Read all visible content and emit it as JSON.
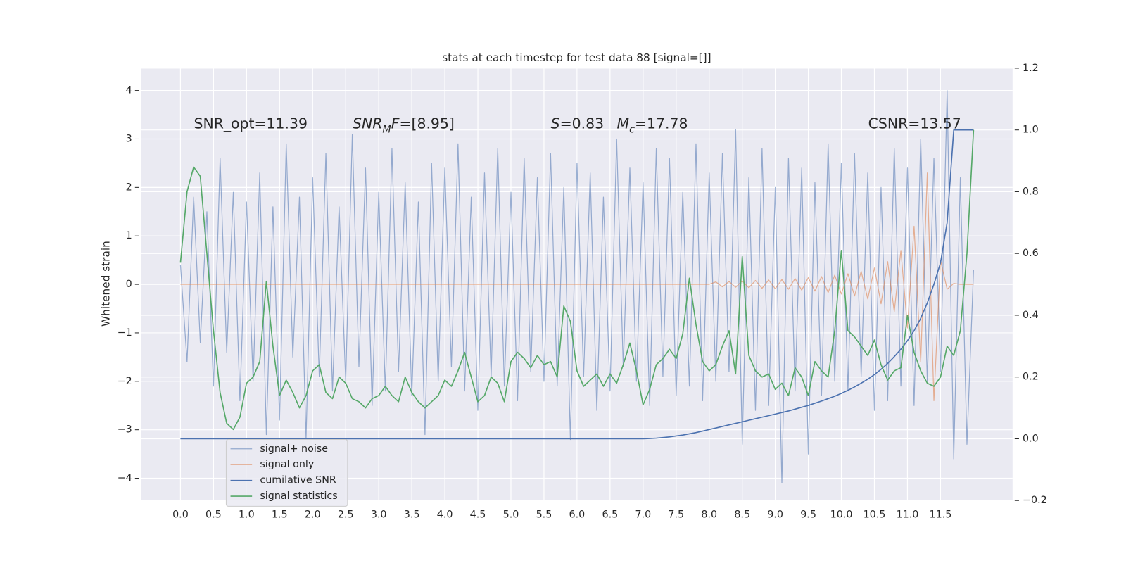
{
  "chart_data": {
    "type": "line",
    "title": "stats at each timestep for test data 88 [signal=[]]",
    "ylabel": "Whitened strain",
    "xlim": [
      -0.59,
      12.59
    ],
    "ylim": [
      -4.46,
      4.46
    ],
    "y2lim": [
      -0.2,
      1.2
    ],
    "grid": true,
    "legend": "lower left",
    "xticks": [
      {
        "value": 0,
        "label": "0.0"
      },
      0.5,
      {
        "value": 1,
        "label": "1.0"
      },
      1.5,
      {
        "value": 2,
        "label": "2.0"
      },
      2.5,
      {
        "value": 3,
        "label": "3.0"
      },
      3.5,
      {
        "value": 4,
        "label": "4.0"
      },
      4.5,
      {
        "value": 5,
        "label": "5.0"
      },
      5.5,
      {
        "value": 6,
        "label": "6.0"
      },
      6.5,
      {
        "value": 7,
        "label": "7.0"
      },
      7.5,
      {
        "value": 8,
        "label": "8.0"
      },
      8.5,
      {
        "value": 9,
        "label": "9.0"
      },
      9.5,
      {
        "value": 10,
        "label": "10.0"
      },
      10.5,
      {
        "value": 11,
        "label": "11.0"
      },
      11.5
    ],
    "yticks": [
      {
        "value": -4,
        "label": "−4"
      },
      {
        "value": -3,
        "label": "−3"
      },
      {
        "value": -2,
        "label": "−2"
      },
      {
        "value": -1,
        "label": "−1"
      },
      0,
      1,
      2,
      3,
      4
    ],
    "y2ticks": [
      {
        "value": -0.2,
        "label": "−0.2"
      },
      {
        "value": 0,
        "label": "0.0"
      },
      0.2,
      0.4,
      0.6,
      0.8,
      {
        "value": 1,
        "label": "1.0"
      },
      1.2
    ],
    "annotations": [
      [
        {
          "text": "SNR_opt=11.39"
        }
      ],
      [
        {
          "text": "SNR",
          "italic": true
        },
        {
          "text": "M",
          "italic": true,
          "subscript": true
        },
        {
          "text": "F",
          "italic": true
        },
        {
          "text": "=[8.95]"
        }
      ],
      [
        {
          "text": "S",
          "italic": true
        },
        {
          "text": "=0.83"
        }
      ],
      [
        {
          "text": "M",
          "italic": true
        },
        {
          "text": "c",
          "italic": true,
          "subscript": true
        },
        {
          "text": "=17.78"
        }
      ],
      [
        {
          "text": "CSNR=13.57"
        }
      ]
    ],
    "x": [
      0,
      0.1,
      0.2,
      0.3,
      0.4,
      0.5,
      0.6,
      0.7,
      0.8,
      0.9,
      1,
      1.1,
      1.2,
      1.3,
      1.4,
      1.5,
      1.6,
      1.7,
      1.8,
      1.9,
      2,
      2.1,
      2.2,
      2.3,
      2.4,
      2.5,
      2.6,
      2.7,
      2.8,
      2.9,
      3,
      3.1,
      3.2,
      3.3,
      3.4,
      3.5,
      3.6,
      3.7,
      3.8,
      3.9,
      4,
      4.1,
      4.2,
      4.3,
      4.4,
      4.5,
      4.6,
      4.7,
      4.8,
      4.9,
      5,
      5.1,
      5.2,
      5.3,
      5.4,
      5.5,
      5.6,
      5.7,
      5.8,
      5.9,
      6,
      6.1,
      6.2,
      6.3,
      6.4,
      6.5,
      6.6,
      6.7,
      6.8,
      6.9,
      7,
      7.1,
      7.2,
      7.3,
      7.4,
      7.5,
      7.6,
      7.7,
      7.8,
      7.9,
      8,
      8.1,
      8.2,
      8.3,
      8.4,
      8.5,
      8.6,
      8.7,
      8.8,
      8.9,
      9,
      9.1,
      9.2,
      9.3,
      9.4,
      9.5,
      9.6,
      9.7,
      9.8,
      9.9,
      10,
      10.1,
      10.2,
      10.3,
      10.4,
      10.5,
      10.6,
      10.7,
      10.8,
      10.9,
      11,
      11.1,
      11.2,
      11.3,
      11.4,
      11.5,
      11.6,
      11.7,
      11.8,
      11.9,
      12
    ],
    "series": [
      {
        "name": "signal+ noise",
        "color": "#4c72b0",
        "values": [
          0.4,
          -1.6,
          1.8,
          -1.2,
          1.5,
          -2.1,
          2.6,
          -1.4,
          1.9,
          -2.4,
          1.7,
          -2.0,
          2.3,
          -3.1,
          1.6,
          -2.8,
          2.9,
          -1.5,
          1.8,
          -3.2,
          2.2,
          -1.9,
          2.7,
          -2.2,
          1.6,
          -2.0,
          3.1,
          -1.7,
          2.4,
          -2.5,
          1.9,
          -2.2,
          2.8,
          -1.8,
          2.1,
          -2.3,
          1.7,
          -3.1,
          2.5,
          -2.0,
          2.4,
          -1.7,
          2.9,
          -2.2,
          1.8,
          -2.6,
          2.3,
          -1.9,
          2.8,
          -2.1,
          1.9,
          -2.4,
          2.6,
          -1.8,
          2.2,
          -2.0,
          2.7,
          -2.1,
          2.0,
          -3.2,
          2.5,
          -1.9,
          2.3,
          -2.6,
          1.8,
          -2.2,
          3.0,
          -1.7,
          2.4,
          -2.0,
          2.1,
          -2.5,
          2.8,
          -1.9,
          2.6,
          -2.3,
          1.9,
          -2.1,
          2.9,
          -2.4,
          2.3,
          -2.0,
          2.7,
          -1.8,
          3.2,
          -3.3,
          2.2,
          -2.6,
          2.8,
          -2.5,
          2.0,
          -4.1,
          2.6,
          -2.2,
          2.4,
          -3.5,
          2.1,
          -2.3,
          2.9,
          -2.0,
          2.5,
          -2.2,
          2.7,
          -1.9,
          2.3,
          -2.6,
          2.0,
          -2.4,
          2.8,
          -2.1,
          2.4,
          -2.5,
          3.0,
          -2.0,
          2.6,
          -1.8,
          4.0,
          -3.6,
          2.2,
          -3.3,
          0.3
        ]
      },
      {
        "name": "signal only",
        "color": "#dd8452",
        "values": [
          0,
          0,
          0,
          0,
          0,
          0,
          0,
          0,
          0,
          0,
          0,
          0,
          0,
          0,
          0,
          0,
          0,
          0,
          0,
          0,
          0,
          0,
          0,
          0,
          0,
          0,
          0,
          0,
          0,
          0,
          0,
          0,
          0,
          0,
          0,
          0,
          0,
          0,
          0,
          0,
          0,
          0,
          0,
          0,
          0,
          0,
          0,
          0,
          0,
          0,
          0,
          0,
          0,
          0,
          0,
          0,
          0,
          0,
          0,
          0,
          0,
          0,
          0,
          0,
          0,
          0,
          0,
          0,
          0,
          0,
          0,
          0,
          0,
          0,
          0,
          0,
          0,
          0,
          0,
          0,
          0,
          0.05,
          -0.05,
          0.06,
          -0.06,
          0.07,
          -0.07,
          0.08,
          -0.08,
          0.09,
          -0.09,
          0.1,
          -0.1,
          0.12,
          -0.12,
          0.14,
          -0.14,
          0.16,
          -0.17,
          0.19,
          -0.2,
          0.22,
          -0.24,
          0.27,
          -0.3,
          0.34,
          -0.4,
          0.47,
          -0.56,
          0.7,
          -0.9,
          1.2,
          -1.6,
          2.3,
          -2.4,
          0.5,
          -0.1,
          0.02,
          0,
          0,
          0
        ]
      },
      {
        "name": "cumilative SNR",
        "color": "#4c72b0",
        "axis": "y2",
        "values": [
          0,
          0,
          0,
          0,
          0,
          0,
          0,
          0,
          0,
          0,
          0,
          0,
          0,
          0,
          0,
          0,
          0,
          0,
          0,
          0,
          0,
          0,
          0,
          0,
          0,
          0,
          0,
          0,
          0,
          0,
          0,
          0,
          0,
          0,
          0,
          0,
          0,
          0,
          0,
          0,
          0,
          0,
          0,
          0,
          0,
          0,
          0,
          0,
          0,
          0,
          0,
          0,
          0,
          0,
          0,
          0,
          0,
          0,
          0,
          0,
          0,
          0,
          0,
          0,
          0,
          0,
          0,
          0,
          0,
          0,
          0,
          0.001,
          0.002,
          0.004,
          0.006,
          0.009,
          0.012,
          0.016,
          0.02,
          0.025,
          0.03,
          0.035,
          0.04,
          0.045,
          0.05,
          0.055,
          0.06,
          0.065,
          0.07,
          0.075,
          0.08,
          0.085,
          0.09,
          0.096,
          0.102,
          0.108,
          0.115,
          0.122,
          0.13,
          0.138,
          0.147,
          0.157,
          0.168,
          0.18,
          0.193,
          0.208,
          0.225,
          0.244,
          0.266,
          0.29,
          0.318,
          0.35,
          0.39,
          0.44,
          0.5,
          0.57,
          0.7,
          1,
          1,
          1,
          1
        ]
      },
      {
        "name": "signal statistics",
        "color": "#55a868",
        "axis": "y2",
        "values": [
          0.57,
          0.8,
          0.88,
          0.85,
          0.6,
          0.35,
          0.15,
          0.05,
          0.03,
          0.07,
          0.18,
          0.2,
          0.25,
          0.51,
          0.3,
          0.14,
          0.19,
          0.15,
          0.1,
          0.14,
          0.22,
          0.24,
          0.15,
          0.13,
          0.2,
          0.18,
          0.13,
          0.12,
          0.1,
          0.13,
          0.14,
          0.17,
          0.14,
          0.12,
          0.2,
          0.15,
          0.12,
          0.1,
          0.12,
          0.14,
          0.19,
          0.17,
          0.22,
          0.28,
          0.2,
          0.12,
          0.14,
          0.2,
          0.18,
          0.12,
          0.25,
          0.28,
          0.26,
          0.23,
          0.27,
          0.24,
          0.25,
          0.2,
          0.43,
          0.38,
          0.22,
          0.17,
          0.19,
          0.21,
          0.17,
          0.21,
          0.18,
          0.24,
          0.31,
          0.22,
          0.11,
          0.16,
          0.24,
          0.26,
          0.29,
          0.26,
          0.34,
          0.52,
          0.37,
          0.25,
          0.22,
          0.24,
          0.3,
          0.35,
          0.21,
          0.59,
          0.27,
          0.22,
          0.2,
          0.21,
          0.16,
          0.18,
          0.14,
          0.23,
          0.2,
          0.14,
          0.25,
          0.22,
          0.2,
          0.35,
          0.61,
          0.35,
          0.33,
          0.3,
          0.27,
          0.32,
          0.24,
          0.19,
          0.22,
          0.23,
          0.4,
          0.28,
          0.22,
          0.18,
          0.17,
          0.2,
          0.3,
          0.27,
          0.35,
          0.6,
          1
        ]
      }
    ]
  }
}
